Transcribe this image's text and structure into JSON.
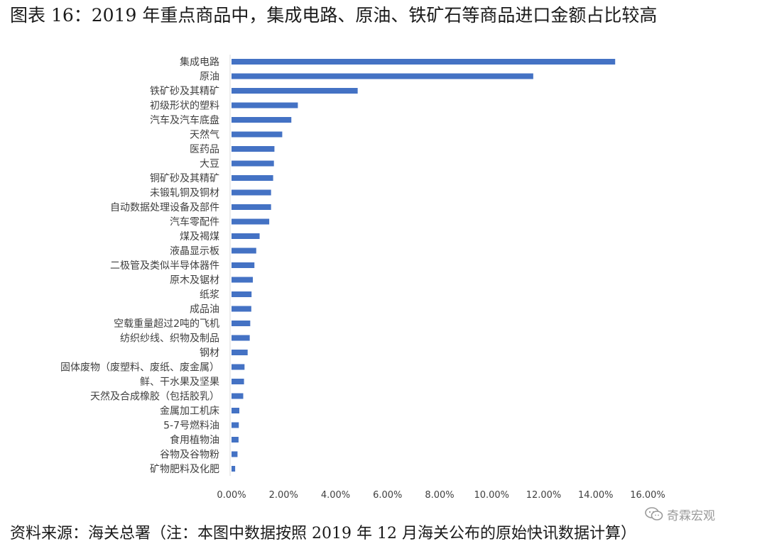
{
  "title": "图表 16：2019 年重点商品中，集成电路、原油、铁矿石等商品进口金额占比较高",
  "source": "资料来源：海关总署（注：本图中数据按照 2019 年 12 月海关公布的原始快讯数据计算）",
  "watermark": {
    "icon": "wechat-icon",
    "text": "奇霖宏观"
  },
  "colors": {
    "bar": "#4472C4",
    "axis": "#d9d9d9",
    "text": "#404040"
  },
  "chart_data": {
    "type": "bar",
    "orientation": "horizontal",
    "categories": [
      "集成电路",
      "原油",
      "铁矿砂及其精矿",
      "初级形状的塑料",
      "汽车及汽车底盘",
      "天然气",
      "医药品",
      "大豆",
      "铜矿砂及其精矿",
      "未锻轧铜及铜材",
      "自动数据处理设备及部件",
      "汽车零配件",
      "煤及褐煤",
      "液晶显示板",
      "二极管及类似半导体器件",
      "原木及锯材",
      "纸浆",
      "成品油",
      "空载重量超过2吨的飞机",
      "纺织纱线、织物及制品",
      "钢材",
      "固体废物（废塑料、废纸、废金属）",
      "鲜、干水果及坚果",
      "天然及合成橡胶（包括胶乳）",
      "金属加工机床",
      "5-7号燃料油",
      "食用植物油",
      "谷物及谷物粉",
      "矿物肥料及化肥"
    ],
    "values": [
      14.75,
      11.6,
      4.85,
      2.55,
      2.3,
      1.95,
      1.65,
      1.63,
      1.6,
      1.52,
      1.52,
      1.45,
      1.08,
      0.95,
      0.88,
      0.82,
      0.77,
      0.76,
      0.72,
      0.7,
      0.62,
      0.5,
      0.48,
      0.45,
      0.3,
      0.28,
      0.27,
      0.23,
      0.14
    ],
    "xlim": [
      0,
      16
    ],
    "xticks": [
      "0.00%",
      "2.00%",
      "4.00%",
      "6.00%",
      "8.00%",
      "10.00%",
      "12.00%",
      "14.00%",
      "16.00%"
    ],
    "xlabel": "",
    "ylabel": "",
    "grid": false,
    "legend": "none"
  }
}
